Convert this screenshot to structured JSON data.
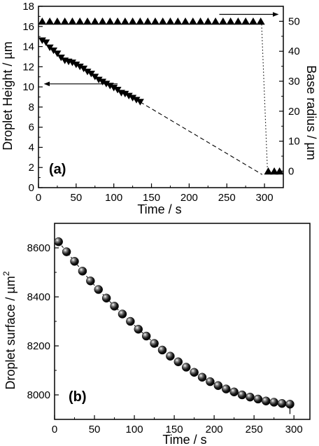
{
  "chart_data": [
    {
      "panel_label": "(a)",
      "type": "scatter",
      "xlabel": "Time / s",
      "ylabel": "Droplet Height / µm",
      "y2label": "Base radius / µm",
      "xlim": [
        0,
        325
      ],
      "ylim": [
        0,
        18
      ],
      "y2lim": [
        -5.5,
        55
      ],
      "xticks": [
        0,
        50,
        100,
        150,
        200,
        250,
        300
      ],
      "xminor": [
        25,
        75,
        125,
        175,
        225,
        275
      ],
      "yticks": [
        0,
        2,
        4,
        6,
        8,
        10,
        12,
        14,
        16,
        18
      ],
      "yminor": [
        1,
        3,
        5,
        7,
        9,
        11,
        13,
        15,
        17
      ],
      "y2ticks": [
        0,
        10,
        20,
        30,
        40,
        50
      ],
      "y2minor": [
        5,
        15,
        25,
        35,
        45
      ],
      "series": [
        {
          "axis": "left",
          "marker": "triangle-down",
          "x": [
            5,
            10,
            15,
            20,
            25,
            30,
            35,
            40,
            45,
            50,
            55,
            60,
            65,
            70,
            75,
            80,
            85,
            90,
            95,
            100,
            105,
            110,
            115,
            120,
            125,
            130,
            135
          ],
          "y": [
            14.6,
            14.4,
            13.9,
            13.6,
            13.3,
            12.9,
            12.6,
            12.5,
            12.4,
            12.2,
            12.0,
            11.8,
            11.5,
            11.3,
            11.0,
            10.7,
            10.5,
            10.3,
            10.1,
            9.9,
            9.7,
            9.4,
            9.3,
            9.1,
            8.9,
            8.7,
            8.5
          ]
        },
        {
          "axis": "right",
          "marker": "triangle-up",
          "x": [
            5,
            15,
            25,
            35,
            45,
            55,
            65,
            75,
            85,
            95,
            105,
            115,
            125,
            135,
            145,
            155,
            165,
            175,
            185,
            195,
            205,
            215,
            225,
            235,
            245,
            255,
            265,
            275,
            285,
            295,
            305,
            313,
            320
          ],
          "y": [
            50,
            50,
            50,
            50,
            50,
            50,
            50,
            50,
            50,
            50,
            50,
            50,
            50,
            50,
            50,
            50,
            50,
            50,
            50,
            50,
            50,
            50,
            50,
            50,
            50,
            50,
            50,
            50,
            50,
            50,
            0,
            0,
            0
          ]
        }
      ],
      "extrapolation_line": {
        "x": [
          135,
          297
        ],
        "y": [
          8.5,
          1.3
        ]
      },
      "drop_line": {
        "x": [
          296,
          304
        ],
        "y2": [
          50,
          0
        ]
      },
      "left_arrow": {
        "x": [
          105,
          8
        ],
        "y": 10.3
      },
      "right_arrow": {
        "x": [
          240,
          318
        ],
        "y": 17.2
      }
    },
    {
      "panel_label": "(b)",
      "type": "scatter",
      "xlabel": "Time / s",
      "ylabel": "Droplet surface / µm",
      "ylabel_sup": "2",
      "xlim": [
        0,
        320
      ],
      "ylim": [
        7900,
        8700
      ],
      "xticks": [
        0,
        50,
        100,
        150,
        200,
        250,
        300
      ],
      "xminor": [
        25,
        75,
        125,
        175,
        225,
        275
      ],
      "yticks": [
        8000,
        8200,
        8400,
        8600
      ],
      "yminor": [
        7900,
        8100,
        8300,
        8500,
        8700
      ],
      "series": [
        {
          "marker": "sphere",
          "x": [
            5,
            15,
            25,
            35,
            45,
            55,
            65,
            75,
            85,
            95,
            105,
            115,
            125,
            135,
            145,
            155,
            165,
            175,
            185,
            195,
            205,
            215,
            225,
            235,
            245,
            255,
            265,
            275,
            285,
            295
          ],
          "y": [
            8625,
            8584,
            8545,
            8505,
            8465,
            8430,
            8395,
            8362,
            8330,
            8300,
            8268,
            8240,
            8210,
            8183,
            8158,
            8135,
            8113,
            8092,
            8072,
            8054,
            8038,
            8024,
            8012,
            8000,
            7991,
            7983,
            7975,
            7970,
            7965,
            7962
          ]
        }
      ]
    }
  ]
}
